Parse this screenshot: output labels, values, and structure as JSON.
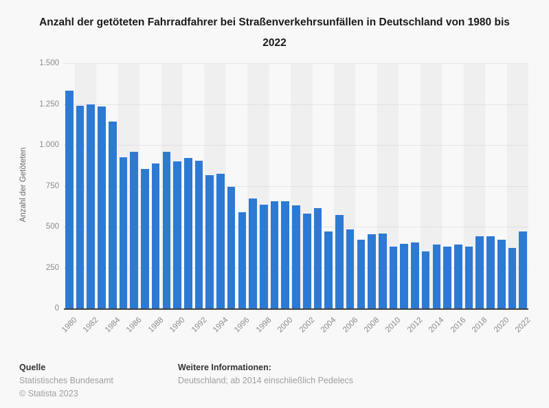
{
  "title": "Anzahl der getöteten Fahrradfahrer bei Straßenverkehrsunfällen in Deutschland von 1980 bis 2022",
  "footer": {
    "source_label": "Quelle",
    "source": "Statistisches Bundesamt",
    "copyright": "© Statista 2023",
    "info_label": "Weitere Informationen:",
    "info": "Deutschland; ab 2014 einschließlich Pedelecs"
  },
  "colors": {
    "bar": "#2d7ad4",
    "background": "#f8f8f8",
    "stripe": "#efefef",
    "axis": "#3f3f3f"
  },
  "chart_data": {
    "type": "bar",
    "title": "Anzahl der getöteten Fahrradfahrer bei Straßenverkehrsunfällen in Deutschland von 1980 bis 2022",
    "xlabel": "",
    "ylabel": "Anzahl der Getöteten",
    "ylim": [
      0,
      1500
    ],
    "grid": "horizontal-dotted",
    "legend": "none",
    "x_tick_step": 2,
    "yticks": [
      {
        "value": 1500,
        "label": "1.500"
      },
      {
        "value": 1250,
        "label": "1.250"
      },
      {
        "value": 1000,
        "label": "1.000"
      },
      {
        "value": 750,
        "label": "750"
      },
      {
        "value": 500,
        "label": "500"
      },
      {
        "value": 250,
        "label": "250"
      },
      {
        "value": 0,
        "label": "0"
      }
    ],
    "categories": [
      1980,
      1981,
      1982,
      1983,
      1984,
      1985,
      1986,
      1987,
      1988,
      1989,
      1990,
      1991,
      1992,
      1993,
      1994,
      1995,
      1996,
      1997,
      1998,
      1999,
      2000,
      2001,
      2002,
      2003,
      2004,
      2005,
      2006,
      2007,
      2008,
      2009,
      2010,
      2011,
      2012,
      2013,
      2014,
      2015,
      2016,
      2017,
      2018,
      2019,
      2020,
      2021,
      2022
    ],
    "values": [
      1338,
      1244,
      1254,
      1238,
      1148,
      928,
      961,
      858,
      891,
      961,
      905,
      925,
      907,
      819,
      829,
      748,
      592,
      675,
      637,
      660,
      659,
      635,
      583,
      616,
      475,
      575,
      486,
      425,
      456,
      462,
      381,
      399,
      406,
      354,
      396,
      383,
      393,
      382,
      445,
      445,
      426,
      372,
      474
    ]
  }
}
